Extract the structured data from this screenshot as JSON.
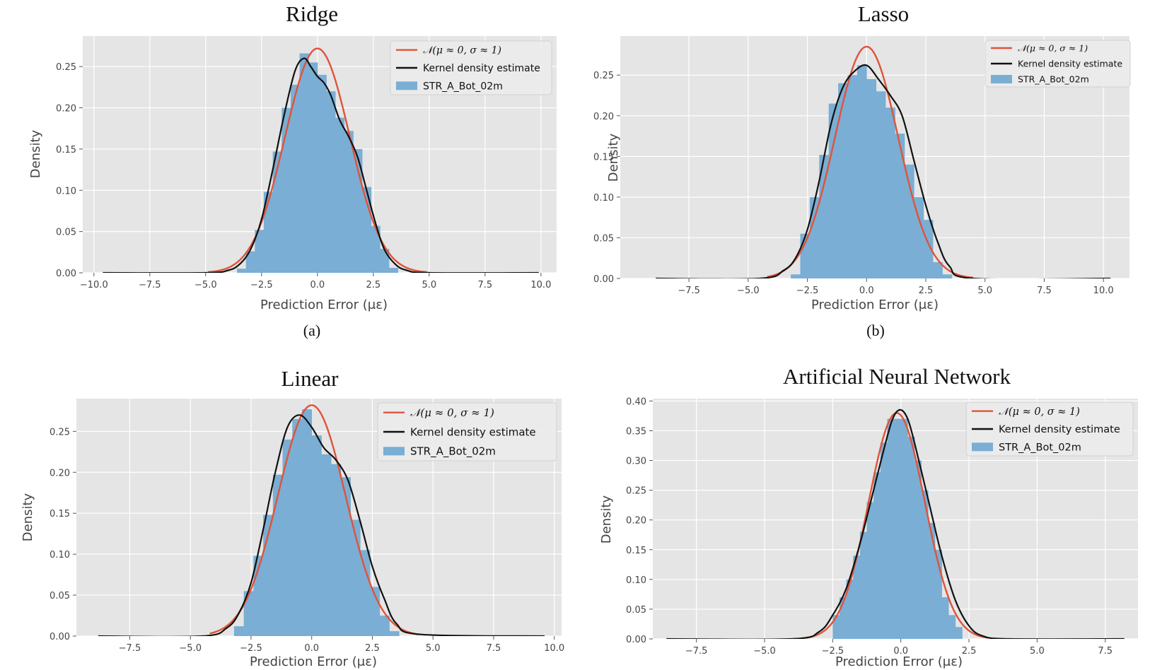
{
  "figure": {
    "colors": {
      "background": "#e5e5e5",
      "grid": "#ffffff",
      "hist": "#7aaed4",
      "normal": "#e0533a",
      "kde": "#111111"
    },
    "panels": [
      {
        "title": "Ridge",
        "caption": "(a)",
        "legend": {
          "normal": "𝒩(μ ≈ 0, σ ≈ 1)",
          "kde": "Kernel density estimate",
          "hist": "STR_A_Bot_02m"
        }
      },
      {
        "title": "Lasso",
        "caption": "(b)",
        "legend": {
          "normal": "𝒩(μ ≈ 0, σ ≈ 1)",
          "kde": "Kernel density estimate",
          "hist": "STR_A_Bot_02m"
        }
      },
      {
        "title": "Linear",
        "caption": "",
        "legend": {
          "normal": "𝒩(μ ≈ 0, σ ≈ 1)",
          "kde": "Kernel density estimate",
          "hist": "STR_A_Bot_02m"
        }
      },
      {
        "title": "Artificial Neural Network",
        "caption": "",
        "legend": {
          "normal": "𝒩(μ ≈ 0, σ ≈ 1)",
          "kde": "Kernel density estimate",
          "hist": "STR_A_Bot_02m"
        }
      }
    ]
  },
  "chart_data": [
    {
      "type": "histogram",
      "title": "Ridge",
      "xlabel": "Prediction Error (με)",
      "ylabel": "Density",
      "xlim": [
        -10.5,
        10.7
      ],
      "ylim": [
        0,
        0.287
      ],
      "xticks": [
        -10.0,
        -7.5,
        -5.0,
        -2.5,
        0.0,
        2.5,
        5.0,
        7.5,
        10.0
      ],
      "xtick_labels": [
        "−10.0",
        "−7.5",
        "−5.0",
        "−2.5",
        "0.0",
        "2.5",
        "5.0",
        "7.5",
        "10.0"
      ],
      "yticks": [
        0.0,
        0.05,
        0.1,
        0.15,
        0.2,
        0.25
      ],
      "ytick_labels": [
        "0.00",
        "0.05",
        "0.10",
        "0.15",
        "0.20",
        "0.25"
      ],
      "grid": true,
      "legend_position": "top-right",
      "series": [
        {
          "name": "STR_A_Bot_02m",
          "kind": "hist",
          "bin_width": 0.4,
          "bin_centers": [
            -3.4,
            -3.0,
            -2.6,
            -2.2,
            -1.8,
            -1.4,
            -1.0,
            -0.6,
            -0.2,
            0.2,
            0.6,
            1.0,
            1.4,
            1.8,
            2.2,
            2.6,
            3.0,
            3.4
          ],
          "values": [
            0.005,
            0.026,
            0.052,
            0.098,
            0.147,
            0.2,
            0.228,
            0.266,
            0.255,
            0.24,
            0.22,
            0.188,
            0.172,
            0.15,
            0.104,
            0.057,
            0.029,
            0.006
          ]
        },
        {
          "name": "𝒩(μ ≈ 0, σ ≈ 1)",
          "kind": "normal",
          "mu": 0.0,
          "peak": 0.272,
          "sigma": 1.45,
          "xrange": [
            -4.9,
            4.9
          ]
        },
        {
          "name": "Kernel density estimate",
          "kind": "line",
          "x": [
            -9.6,
            -5.0,
            -4.0,
            -3.5,
            -3.0,
            -2.5,
            -2.0,
            -1.5,
            -1.0,
            -0.6,
            -0.3,
            0.0,
            0.3,
            0.6,
            1.0,
            1.4,
            1.8,
            2.2,
            2.6,
            3.0,
            3.5,
            4.0,
            5.0,
            9.9
          ],
          "y": [
            0.0,
            0.0,
            0.003,
            0.01,
            0.028,
            0.065,
            0.125,
            0.19,
            0.245,
            0.26,
            0.25,
            0.238,
            0.23,
            0.215,
            0.185,
            0.165,
            0.14,
            0.1,
            0.06,
            0.028,
            0.01,
            0.003,
            0.0,
            0.0
          ]
        }
      ]
    },
    {
      "type": "histogram",
      "title": "Lasso",
      "xlabel": "Prediction Error (με)",
      "ylabel": "Density",
      "xlim": [
        -10.4,
        11.1
      ],
      "ylim": [
        0,
        0.298
      ],
      "xticks": [
        -7.5,
        -5.0,
        -2.5,
        0.0,
        2.5,
        5.0,
        7.5,
        10.0
      ],
      "xtick_labels": [
        "−7.5",
        "−5.0",
        "−2.5",
        "0.0",
        "2.5",
        "5.0",
        "7.5",
        "10.0"
      ],
      "yticks": [
        0.0,
        0.05,
        0.1,
        0.15,
        0.2,
        0.25
      ],
      "ytick_labels": [
        "0.00",
        "0.05",
        "0.10",
        "0.15",
        "0.20",
        "0.25"
      ],
      "grid": true,
      "legend_position": "top-right",
      "series": [
        {
          "name": "STR_A_Bot_02m",
          "kind": "hist",
          "bin_width": 0.4,
          "bin_centers": [
            -3.0,
            -2.6,
            -2.2,
            -1.8,
            -1.4,
            -1.0,
            -0.6,
            -0.2,
            0.2,
            0.6,
            1.0,
            1.4,
            1.8,
            2.2,
            2.6,
            3.0,
            3.4
          ],
          "values": [
            0.005,
            0.055,
            0.1,
            0.152,
            0.215,
            0.24,
            0.25,
            0.262,
            0.245,
            0.23,
            0.21,
            0.178,
            0.14,
            0.1,
            0.072,
            0.02,
            0.005
          ]
        },
        {
          "name": "𝒩(μ ≈ 0, σ ≈ 1)",
          "kind": "normal",
          "mu": 0.0,
          "peak": 0.285,
          "sigma": 1.34,
          "xrange": [
            -4.2,
            4.5
          ]
        },
        {
          "name": "Kernel density estimate",
          "kind": "line",
          "x": [
            -8.9,
            -4.5,
            -3.5,
            -3.0,
            -2.5,
            -2.0,
            -1.5,
            -1.0,
            -0.5,
            0.0,
            0.5,
            1.0,
            1.5,
            2.0,
            2.5,
            3.0,
            3.5,
            4.5,
            10.3
          ],
          "y": [
            0.0,
            0.0,
            0.01,
            0.025,
            0.06,
            0.12,
            0.19,
            0.235,
            0.255,
            0.262,
            0.245,
            0.225,
            0.2,
            0.145,
            0.09,
            0.045,
            0.015,
            0.0,
            0.0
          ]
        }
      ]
    },
    {
      "type": "histogram",
      "title": "Linear",
      "xlabel": "Prediction Error (με)",
      "ylabel": "Density",
      "xlim": [
        -9.7,
        10.3
      ],
      "ylim": [
        0,
        0.29
      ],
      "xticks": [
        -7.5,
        -5.0,
        -2.5,
        0.0,
        2.5,
        5.0,
        7.5,
        10.0
      ],
      "xtick_labels": [
        "−7.5",
        "−5.0",
        "−2.5",
        "0.0",
        "2.5",
        "5.0",
        "7.5",
        "10.0"
      ],
      "yticks": [
        0.0,
        0.05,
        0.1,
        0.15,
        0.2,
        0.25
      ],
      "ytick_labels": [
        "0.00",
        "0.05",
        "0.10",
        "0.15",
        "0.20",
        "0.25"
      ],
      "grid": true,
      "legend_position": "top-right",
      "series": [
        {
          "name": "STR_A_Bot_02m",
          "kind": "hist",
          "bin_width": 0.4,
          "bin_centers": [
            -3.0,
            -2.6,
            -2.2,
            -1.8,
            -1.4,
            -1.0,
            -0.6,
            -0.2,
            0.2,
            0.6,
            1.0,
            1.4,
            1.8,
            2.2,
            2.6,
            3.0,
            3.4
          ],
          "values": [
            0.012,
            0.055,
            0.098,
            0.148,
            0.197,
            0.24,
            0.265,
            0.277,
            0.245,
            0.222,
            0.21,
            0.194,
            0.142,
            0.105,
            0.06,
            0.025,
            0.006
          ]
        },
        {
          "name": "𝒩(μ ≈ 0, σ ≈ 1)",
          "kind": "normal",
          "mu": 0.0,
          "peak": 0.282,
          "sigma": 1.4,
          "xrange": [
            -4.2,
            4.4
          ]
        },
        {
          "name": "Kernel density estimate",
          "kind": "line",
          "x": [
            -8.8,
            -4.5,
            -3.5,
            -3.0,
            -2.5,
            -2.0,
            -1.5,
            -1.0,
            -0.5,
            0.0,
            0.5,
            1.0,
            1.5,
            2.0,
            2.5,
            3.0,
            3.5,
            4.5,
            9.6
          ],
          "y": [
            0.0,
            0.0,
            0.01,
            0.028,
            0.065,
            0.13,
            0.2,
            0.255,
            0.27,
            0.255,
            0.23,
            0.215,
            0.19,
            0.14,
            0.085,
            0.045,
            0.015,
            0.002,
            0.0
          ]
        }
      ]
    },
    {
      "type": "histogram",
      "title": "Artificial Neural Network",
      "xlabel": "Prediction Error (με)",
      "ylabel": "Density",
      "xlim": [
        -9.1,
        8.7
      ],
      "ylim": [
        0,
        0.404
      ],
      "xticks": [
        -7.5,
        -5.0,
        -2.5,
        0.0,
        2.5,
        5.0,
        7.5
      ],
      "xtick_labels": [
        "−7.5",
        "−5.0",
        "−2.5",
        "0.0",
        "2.5",
        "5.0",
        "7.5"
      ],
      "yticks": [
        0.0,
        0.05,
        0.1,
        0.15,
        0.2,
        0.25,
        0.3,
        0.35,
        0.4
      ],
      "ytick_labels": [
        "0.00",
        "0.05",
        "0.10",
        "0.15",
        "0.20",
        "0.25",
        "0.30",
        "0.35",
        "0.40"
      ],
      "grid": true,
      "legend_position": "top-right",
      "series": [
        {
          "name": "STR_A_Bot_02m",
          "kind": "hist",
          "bin_width": 0.25,
          "bin_centers": [
            -2.375,
            -2.125,
            -1.875,
            -1.625,
            -1.375,
            -1.125,
            -0.875,
            -0.625,
            -0.375,
            -0.125,
            0.125,
            0.375,
            0.625,
            0.875,
            1.125,
            1.375,
            1.625,
            1.875,
            2.125
          ],
          "values": [
            0.04,
            0.07,
            0.1,
            0.14,
            0.18,
            0.23,
            0.28,
            0.33,
            0.37,
            0.37,
            0.37,
            0.34,
            0.3,
            0.25,
            0.195,
            0.15,
            0.07,
            0.04,
            0.02
          ]
        },
        {
          "name": "𝒩(μ ≈ 0, σ ≈ 1)",
          "kind": "normal",
          "mu": -0.15,
          "peak": 0.38,
          "sigma": 1.03,
          "xrange": [
            -3.5,
            3.2
          ]
        },
        {
          "name": "Kernel density estimate",
          "kind": "line",
          "x": [
            -8.6,
            -4.0,
            -3.0,
            -2.5,
            -2.0,
            -1.5,
            -1.0,
            -0.5,
            -0.25,
            0.0,
            0.25,
            0.5,
            1.0,
            1.5,
            2.0,
            2.5,
            3.0,
            4.0,
            8.2
          ],
          "y": [
            0.0,
            0.0,
            0.012,
            0.04,
            0.085,
            0.16,
            0.25,
            0.34,
            0.375,
            0.385,
            0.37,
            0.33,
            0.235,
            0.14,
            0.065,
            0.022,
            0.005,
            0.0,
            0.0
          ]
        }
      ]
    }
  ]
}
